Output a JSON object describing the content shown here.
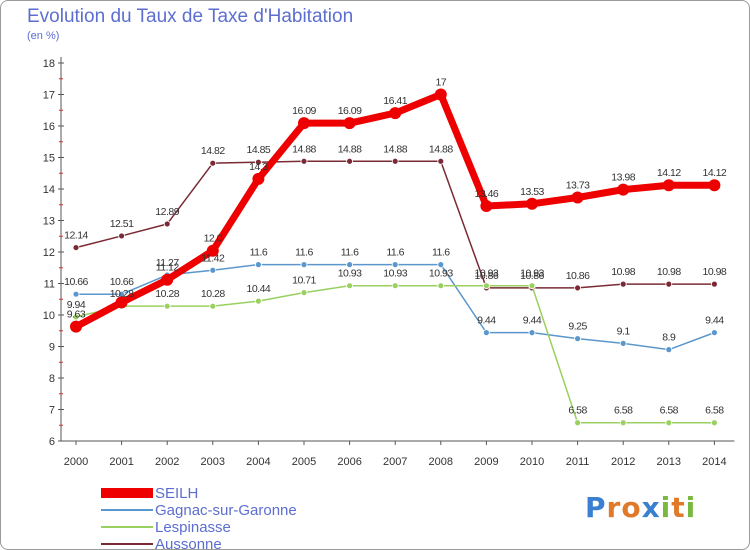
{
  "header": {
    "title": "Evolution du Taux de Taxe d'Habitation",
    "subtitle": "(en %)"
  },
  "logo": {
    "letters": [
      "P",
      "r",
      "o",
      "x",
      "i",
      "t",
      "i"
    ],
    "colors": [
      "#3a7fd0",
      "#e07a2a",
      "#e07a2a",
      "#3a7fd0",
      "#7ab840",
      "#e07a2a",
      "#7ab840"
    ]
  },
  "chart_data": {
    "type": "line",
    "title": "Evolution du Taux de Taxe d'Habitation",
    "subtitle": "(en %)",
    "xlabel": "",
    "ylabel": "",
    "x": [
      "2000",
      "2001",
      "2002",
      "2003",
      "2004",
      "2005",
      "2006",
      "2007",
      "2008",
      "2009",
      "2010",
      "2011",
      "2012",
      "2013",
      "2014"
    ],
    "ylim": [
      6,
      18
    ],
    "yticks": [
      6,
      7,
      8,
      9,
      10,
      11,
      12,
      13,
      14,
      15,
      16,
      17,
      18
    ],
    "grid": false,
    "legend_position": "bottom-left",
    "series": [
      {
        "name": "SEILH",
        "color": "#ee0000",
        "values": [
          9.63,
          10.4,
          11.12,
          12.04,
          14.32,
          16.09,
          16.09,
          16.41,
          17,
          13.46,
          13.53,
          13.73,
          13.98,
          14.12,
          14.12
        ],
        "labels": [
          "9.63",
          "",
          "11.12",
          "12.0",
          "14.3",
          "16.09",
          "16.09",
          "16.41",
          "17",
          "13.46",
          "13.53",
          "13.73",
          "13.98",
          "14.12",
          "14.12"
        ]
      },
      {
        "name": "Gagnac-sur-Garonne",
        "color": "#5b97cc",
        "values": [
          10.66,
          10.66,
          11.27,
          11.42,
          11.6,
          11.6,
          11.6,
          11.6,
          11.6,
          9.44,
          9.44,
          9.25,
          9.1,
          8.9,
          9.44
        ],
        "labels": [
          "10.66",
          "10.66",
          "11.27",
          "11.42",
          "11.6",
          "11.6",
          "11.6",
          "11.6",
          "11.6",
          "9.44",
          "9.44",
          "9.25",
          "9.1",
          "8.9",
          "9.44"
        ]
      },
      {
        "name": "Lespinasse",
        "color": "#99d060",
        "values": [
          9.94,
          10.28,
          10.28,
          10.28,
          10.44,
          10.71,
          10.93,
          10.93,
          10.93,
          10.93,
          10.93,
          6.58,
          6.58,
          6.58,
          6.58
        ],
        "labels": [
          "9.94",
          "10.28",
          "10.28",
          "10.28",
          "10.44",
          "10.71",
          "10.93",
          "10.93",
          "10.93",
          "10.93",
          "10.93",
          "6.58",
          "6.58",
          "6.58",
          "6.58"
        ]
      },
      {
        "name": "Aussonne",
        "color": "#7a2a34",
        "values": [
          12.14,
          12.51,
          12.89,
          14.82,
          14.85,
          14.88,
          14.88,
          14.88,
          14.88,
          10.86,
          10.86,
          10.86,
          10.98,
          10.98,
          10.98
        ],
        "labels": [
          "12.14",
          "12.51",
          "12.89",
          "14.82",
          "14.85",
          "14.88",
          "14.88",
          "14.88",
          "14.88",
          "10.86",
          "10.86",
          "10.86",
          "10.98",
          "10.98",
          "10.98"
        ]
      }
    ]
  }
}
